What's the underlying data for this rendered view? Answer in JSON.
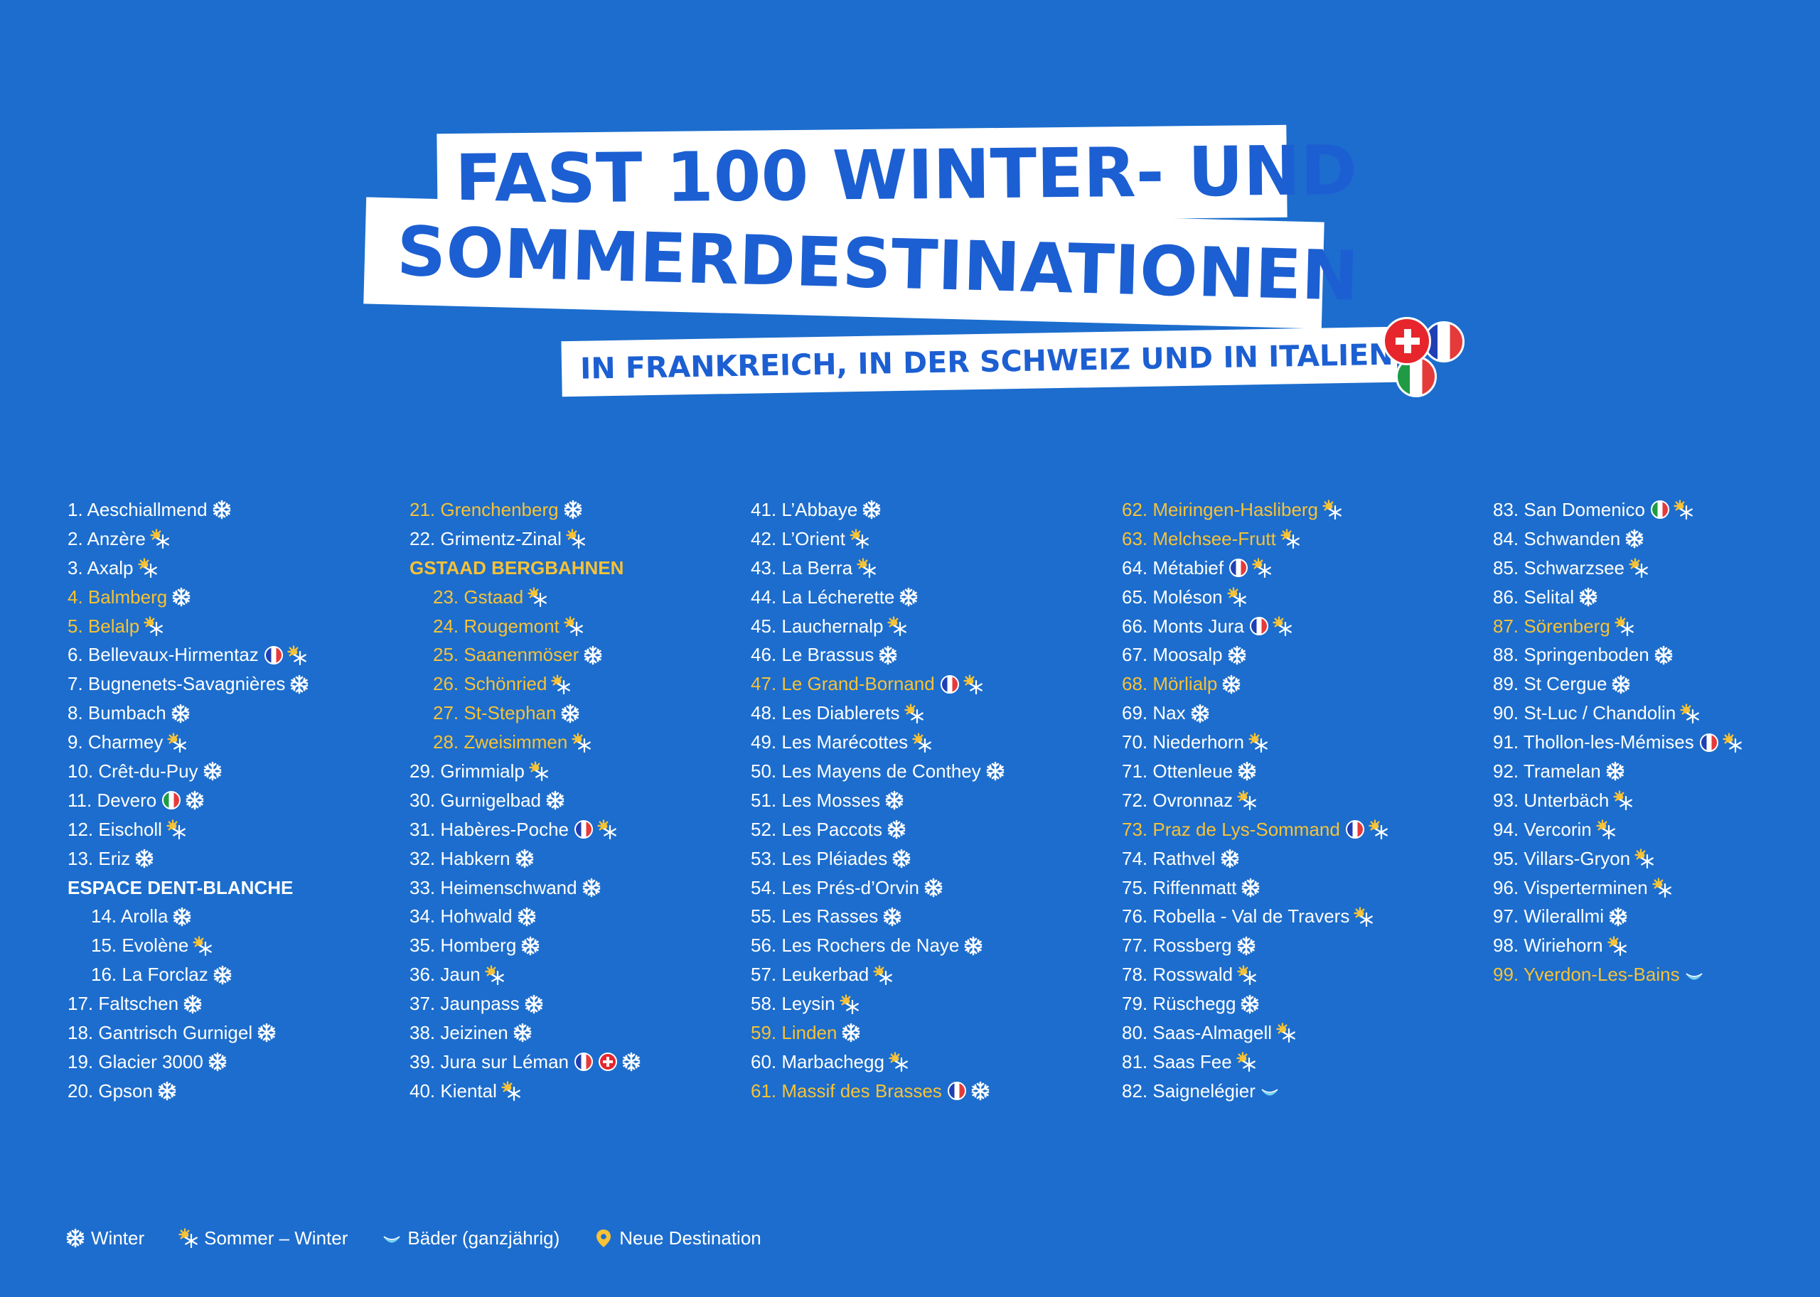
{
  "colors": {
    "background": "#1c6dcd",
    "title_text": "#1c5fd2",
    "new_destination": "#f6c237",
    "text": "#ffffff"
  },
  "header": {
    "line1": "FAST 100 WINTER- UND",
    "line2": "SOMMERDESTINATIONEN",
    "subtitle": "IN FRANKREICH, IN DER SCHWEIZ UND IN ITALIEN",
    "flags": [
      "flag-switzerland",
      "flag-france",
      "flag-italy"
    ]
  },
  "columns": [
    [
      {
        "label": "1. Aeschiallmend",
        "icon": "snowflake"
      },
      {
        "label": "2. Anzère",
        "icon": "sun-snow"
      },
      {
        "label": "3. Axalp",
        "icon": "sun-snow"
      },
      {
        "label": "4. Balmberg",
        "icon": "snowflake",
        "new": true
      },
      {
        "label": "5. Belalp",
        "icon": "sun-snow",
        "new": true
      },
      {
        "label": "6. Bellevaux-Hirmentaz",
        "flags": [
          "fr"
        ],
        "icon": "sun-snow"
      },
      {
        "label": "7. Bugnenets-Savagnières",
        "icon": "snowflake"
      },
      {
        "label": "8. Bumbach",
        "icon": "snowflake"
      },
      {
        "label": "9. Charmey",
        "icon": "sun-snow"
      },
      {
        "label": "10. Crêt-du-Puy",
        "icon": "snowflake"
      },
      {
        "label": "11. Devero",
        "flags": [
          "it"
        ],
        "icon": "snowflake"
      },
      {
        "label": "12. Eischoll",
        "icon": "sun-snow"
      },
      {
        "label": "13. Eriz",
        "icon": "snowflake"
      },
      {
        "group": "ESPACE DENT-BLANCHE"
      },
      {
        "label": "14. Arolla",
        "icon": "snowflake",
        "sub": true
      },
      {
        "label": "15. Evolène",
        "icon": "sun-snow",
        "sub": true
      },
      {
        "label": "16. La Forclaz",
        "icon": "snowflake",
        "sub": true
      },
      {
        "label": "17. Faltschen",
        "icon": "snowflake"
      },
      {
        "label": "18. Gantrisch Gurnigel",
        "icon": "snowflake"
      },
      {
        "label": "19. Glacier 3000",
        "icon": "snowflake"
      },
      {
        "label": "20. Gpson",
        "icon": "snowflake"
      }
    ],
    [
      {
        "label": "21. Grenchenberg",
        "icon": "snowflake",
        "new": true
      },
      {
        "label": "22. Grimentz-Zinal",
        "icon": "sun-snow"
      },
      {
        "group": "GSTAAD BERGBAHNEN",
        "new": true
      },
      {
        "label": "23. Gstaad",
        "icon": "sun-snow",
        "new": true,
        "sub": true
      },
      {
        "label": "24. Rougemont",
        "icon": "sun-snow",
        "new": true,
        "sub": true
      },
      {
        "label": "25. Saanenmöser",
        "icon": "snowflake",
        "new": true,
        "sub": true
      },
      {
        "label": "26. Schönried",
        "icon": "sun-snow",
        "new": true,
        "sub": true
      },
      {
        "label": "27. St-Stephan",
        "icon": "snowflake",
        "new": true,
        "sub": true
      },
      {
        "label": "28. Zweisimmen",
        "icon": "sun-snow",
        "new": true,
        "sub": true
      },
      {
        "label": "29. Grimmialp",
        "icon": "sun-snow"
      },
      {
        "label": "30. Gurnigelbad",
        "icon": "snowflake"
      },
      {
        "label": "31. Habères-Poche",
        "flags": [
          "fr"
        ],
        "icon": "sun-snow"
      },
      {
        "label": "32. Habkern",
        "icon": "snowflake"
      },
      {
        "label": "33. Heimenschwand",
        "icon": "snowflake"
      },
      {
        "label": "34. Hohwald",
        "icon": "snowflake"
      },
      {
        "label": "35. Homberg",
        "icon": "snowflake"
      },
      {
        "label": "36. Jaun",
        "icon": "sun-snow"
      },
      {
        "label": "37. Jaunpass",
        "icon": "snowflake"
      },
      {
        "label": "38. Jeizinen",
        "icon": "snowflake"
      },
      {
        "label": "39. Jura sur Léman",
        "flags": [
          "fr",
          "ch"
        ],
        "icon": "snowflake"
      },
      {
        "label": "40. Kiental",
        "icon": "sun-snow"
      }
    ],
    [
      {
        "label": "41. L’Abbaye",
        "icon": "snowflake"
      },
      {
        "label": "42. L’Orient",
        "icon": "sun-snow"
      },
      {
        "label": "43. La Berra",
        "icon": "sun-snow"
      },
      {
        "label": "44. La Lécherette",
        "icon": "snowflake"
      },
      {
        "label": "45. Lauchernalp",
        "icon": "sun-snow"
      },
      {
        "label": "46. Le Brassus",
        "icon": "snowflake"
      },
      {
        "label": "47. Le Grand-Bornand",
        "flags": [
          "fr"
        ],
        "icon": "sun-snow",
        "new": true
      },
      {
        "label": "48. Les Diablerets",
        "icon": "sun-snow"
      },
      {
        "label": "49. Les Marécottes",
        "icon": "sun-snow"
      },
      {
        "label": "50. Les Mayens de Conthey",
        "icon": "snowflake"
      },
      {
        "label": "51. Les Mosses",
        "icon": "snowflake"
      },
      {
        "label": "52. Les Paccots",
        "icon": "snowflake"
      },
      {
        "label": "53. Les Pléiades",
        "icon": "snowflake"
      },
      {
        "label": "54. Les Prés-d’Orvin",
        "icon": "snowflake"
      },
      {
        "label": "55. Les Rasses",
        "icon": "snowflake"
      },
      {
        "label": "56. Les Rochers de Naye",
        "icon": "snowflake"
      },
      {
        "label": "57. Leukerbad",
        "icon": "sun-snow"
      },
      {
        "label": "58. Leysin",
        "icon": "sun-snow"
      },
      {
        "label": "59. Linden",
        "icon": "snowflake",
        "new": true
      },
      {
        "label": "60. Marbachegg",
        "icon": "sun-snow"
      },
      {
        "label": "61. Massif des Brasses",
        "flags": [
          "fr"
        ],
        "icon": "snowflake",
        "new": true
      }
    ],
    [
      {
        "label": "62. Meiringen-Hasliberg",
        "icon": "sun-snow",
        "new": true
      },
      {
        "label": "63. Melchsee-Frutt",
        "icon": "sun-snow",
        "new": true
      },
      {
        "label": "64. Métabief",
        "flags": [
          "fr"
        ],
        "icon": "sun-snow"
      },
      {
        "label": "65. Moléson",
        "icon": "sun-snow"
      },
      {
        "label": "66. Monts Jura",
        "flags": [
          "fr"
        ],
        "icon": "sun-snow"
      },
      {
        "label": "67. Moosalp",
        "icon": "snowflake"
      },
      {
        "label": "68. Mörlialp",
        "icon": "snowflake",
        "new": true
      },
      {
        "label": "69. Nax",
        "icon": "snowflake"
      },
      {
        "label": "70. Niederhorn",
        "icon": "sun-snow"
      },
      {
        "label": "71. Ottenleue",
        "icon": "snowflake"
      },
      {
        "label": "72. Ovronnaz",
        "icon": "sun-snow"
      },
      {
        "label": "73. Praz de Lys-Sommand",
        "flags": [
          "fr"
        ],
        "icon": "sun-snow",
        "new": true
      },
      {
        "label": "74. Rathvel",
        "icon": "snowflake"
      },
      {
        "label": "75. Riffenmatt",
        "icon": "snowflake"
      },
      {
        "label": "76. Robella - Val de Travers",
        "icon": "sun-snow"
      },
      {
        "label": "77. Rossberg",
        "icon": "snowflake"
      },
      {
        "label": "78. Rosswald",
        "icon": "sun-snow"
      },
      {
        "label": "79. Rüschegg",
        "icon": "snowflake"
      },
      {
        "label": "80. Saas-Almagell",
        "icon": "sun-snow"
      },
      {
        "label": "81. Saas Fee",
        "icon": "sun-snow"
      },
      {
        "label": "82. Saignelégier",
        "icon": "bath"
      }
    ],
    [
      {
        "label": "83. San Domenico",
        "flags": [
          "it"
        ],
        "icon": "sun-snow"
      },
      {
        "label": "84. Schwanden",
        "icon": "snowflake"
      },
      {
        "label": "85. Schwarzsee",
        "icon": "sun-snow"
      },
      {
        "label": "86. Selital",
        "icon": "snowflake"
      },
      {
        "label": "87. Sörenberg",
        "icon": "sun-snow",
        "new": true
      },
      {
        "label": "88. Springenboden",
        "icon": "snowflake"
      },
      {
        "label": "89. St Cergue",
        "icon": "snowflake"
      },
      {
        "label": "90. St-Luc / Chandolin",
        "icon": "sun-snow"
      },
      {
        "label": "91. Thollon-les-Mémises",
        "flags": [
          "fr"
        ],
        "icon": "sun-snow"
      },
      {
        "label": "92. Tramelan",
        "icon": "snowflake"
      },
      {
        "label": "93. Unterbäch",
        "icon": "sun-snow"
      },
      {
        "label": "94. Vercorin",
        "icon": "sun-snow"
      },
      {
        "label": "95. Villars-Gryon",
        "icon": "sun-snow"
      },
      {
        "label": "96. Visperterminen",
        "icon": "sun-snow"
      },
      {
        "label": "97. Wilerallmi",
        "icon": "snowflake"
      },
      {
        "label": "98. Wiriehorn",
        "icon": "sun-snow"
      },
      {
        "label": "99. Yverdon-Les-Bains",
        "icon": "bath",
        "new": true
      }
    ]
  ],
  "legend": [
    {
      "icon": "snowflake",
      "label": "Winter"
    },
    {
      "icon": "sun-snow",
      "label": "Sommer – Winter"
    },
    {
      "icon": "bath",
      "label": "Bäder (ganzjährig)"
    },
    {
      "icon": "pin",
      "label": "Neue Destination"
    }
  ]
}
